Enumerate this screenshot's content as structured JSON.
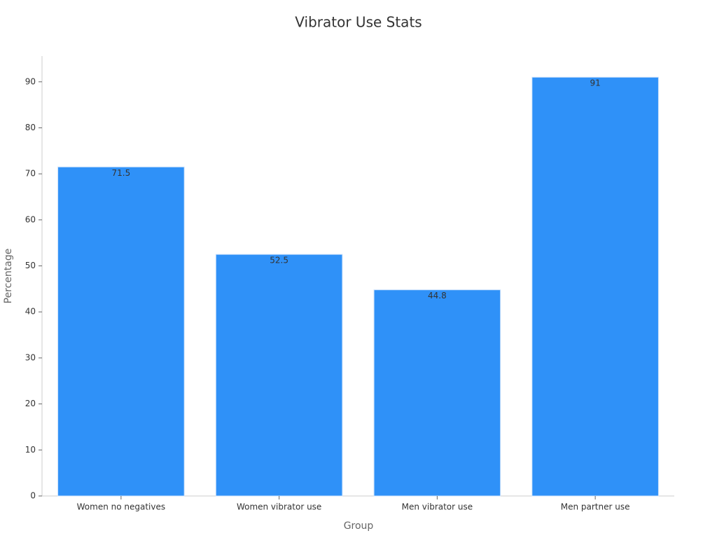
{
  "chart_data": {
    "type": "bar",
    "title": "Vibrator Use Stats",
    "x_label": "Group",
    "y_label": "Percentage",
    "categories": [
      "Women no negatives",
      "Women vibrator use",
      "Men vibrator use",
      "Men partner use"
    ],
    "values": [
      71.5,
      52.5,
      44.8,
      91
    ],
    "color": "#2f91f8",
    "ylim": [
      0,
      95.6
    ],
    "yticks": [
      0,
      10,
      20,
      30,
      40,
      50,
      60,
      70,
      80,
      90
    ],
    "grid": false
  }
}
